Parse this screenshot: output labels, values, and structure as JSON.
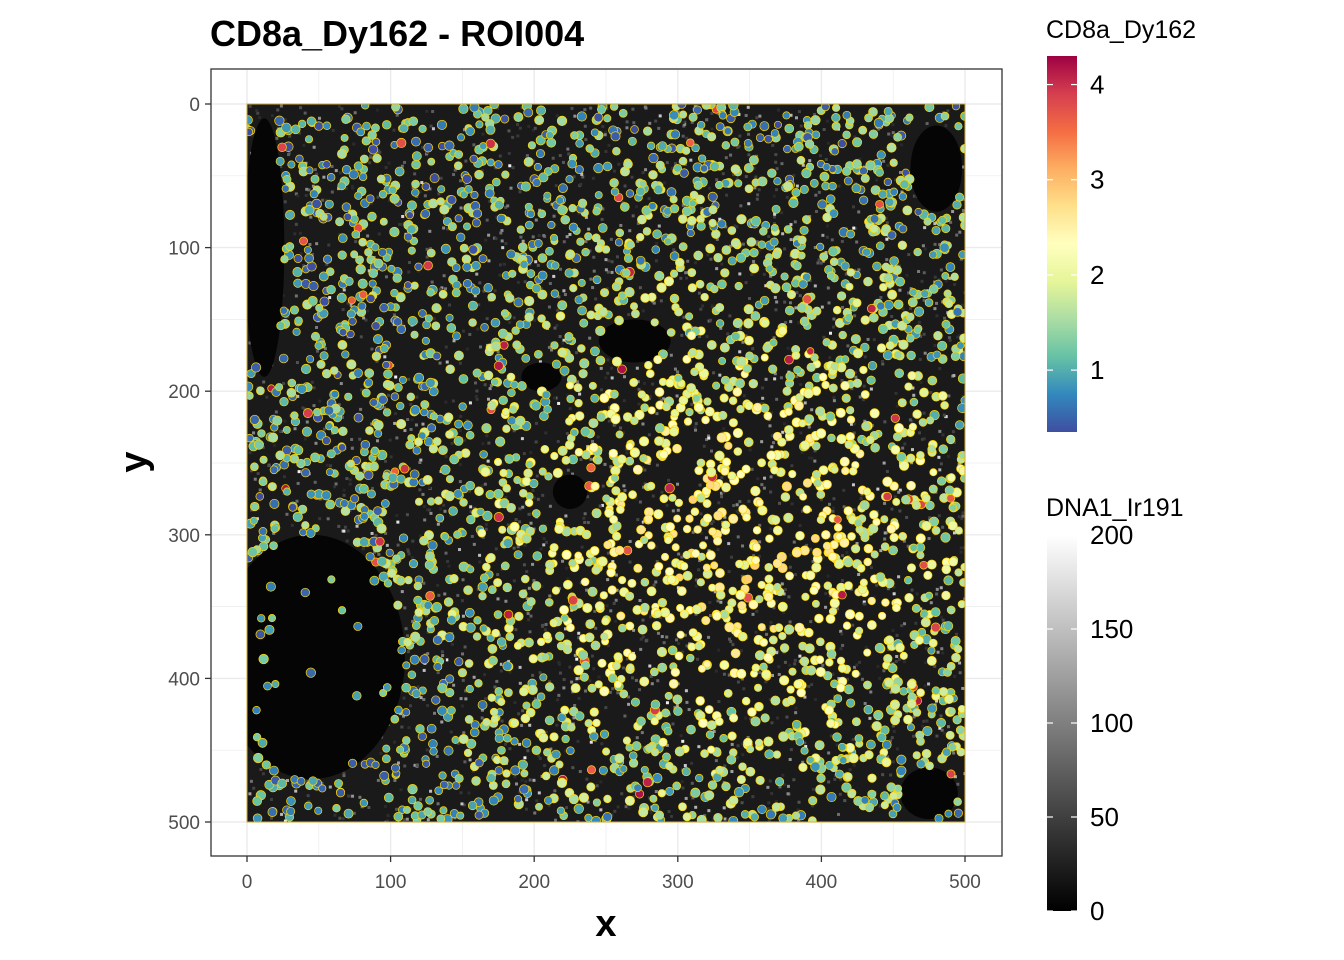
{
  "chart_data": {
    "type": "scatter",
    "title": "CD8a_Dy162 - ROI004",
    "xlabel": "x",
    "ylabel": "y",
    "xlim": [
      0,
      500
    ],
    "ylim": [
      0,
      500
    ],
    "y_axis_reversed": true,
    "x_ticks": [
      "0",
      "100",
      "200",
      "300",
      "400",
      "500"
    ],
    "y_ticks": [
      "0",
      "100",
      "200",
      "300",
      "400",
      "500"
    ],
    "grid": true,
    "background_image": "DNA1_Ir191 grayscale intensity",
    "cell_outline_color": "#FFD700",
    "legends": [
      {
        "title": "CD8a_Dy162",
        "type": "colorbar",
        "palette": "Spectral (reversed)",
        "range": [
          0.35,
          4.3
        ],
        "ticks": [
          "1",
          "2",
          "3",
          "4"
        ],
        "tick_values": [
          1,
          2,
          3,
          4
        ],
        "colors": [
          "#3E4FA1",
          "#3288BD",
          "#66C2A5",
          "#ABDDA4",
          "#E6F598",
          "#FFFFBF",
          "#FEE08B",
          "#FDAE61",
          "#F46D43",
          "#D53E4F",
          "#9E0142"
        ]
      },
      {
        "title": "DNA1_Ir191",
        "type": "colorbar",
        "palette": "grayscale",
        "range": [
          0,
          200
        ],
        "ticks": [
          "0",
          "50",
          "100",
          "150",
          "200"
        ],
        "tick_values": [
          0,
          50,
          100,
          150,
          200
        ],
        "colors": [
          "#000000",
          "#FFFFFF"
        ]
      }
    ],
    "dark_regions": [
      {
        "kind": "lumen",
        "cx": 45,
        "cy": 385,
        "rx": 65,
        "ry": 85
      },
      {
        "kind": "lumen",
        "cx": 225,
        "cy": 270,
        "rx": 12,
        "ry": 12
      },
      {
        "kind": "lumen",
        "cx": 205,
        "cy": 190,
        "rx": 14,
        "ry": 10
      },
      {
        "kind": "lumen",
        "cx": 12,
        "cy": 100,
        "rx": 14,
        "ry": 90
      },
      {
        "kind": "lumen",
        "cx": 475,
        "cy": 480,
        "rx": 20,
        "ry": 18
      },
      {
        "kind": "lumen",
        "cx": 270,
        "cy": 165,
        "rx": 25,
        "ry": 15
      },
      {
        "kind": "lumen",
        "cx": 480,
        "cy": 45,
        "rx": 18,
        "ry": 30
      }
    ]
  }
}
